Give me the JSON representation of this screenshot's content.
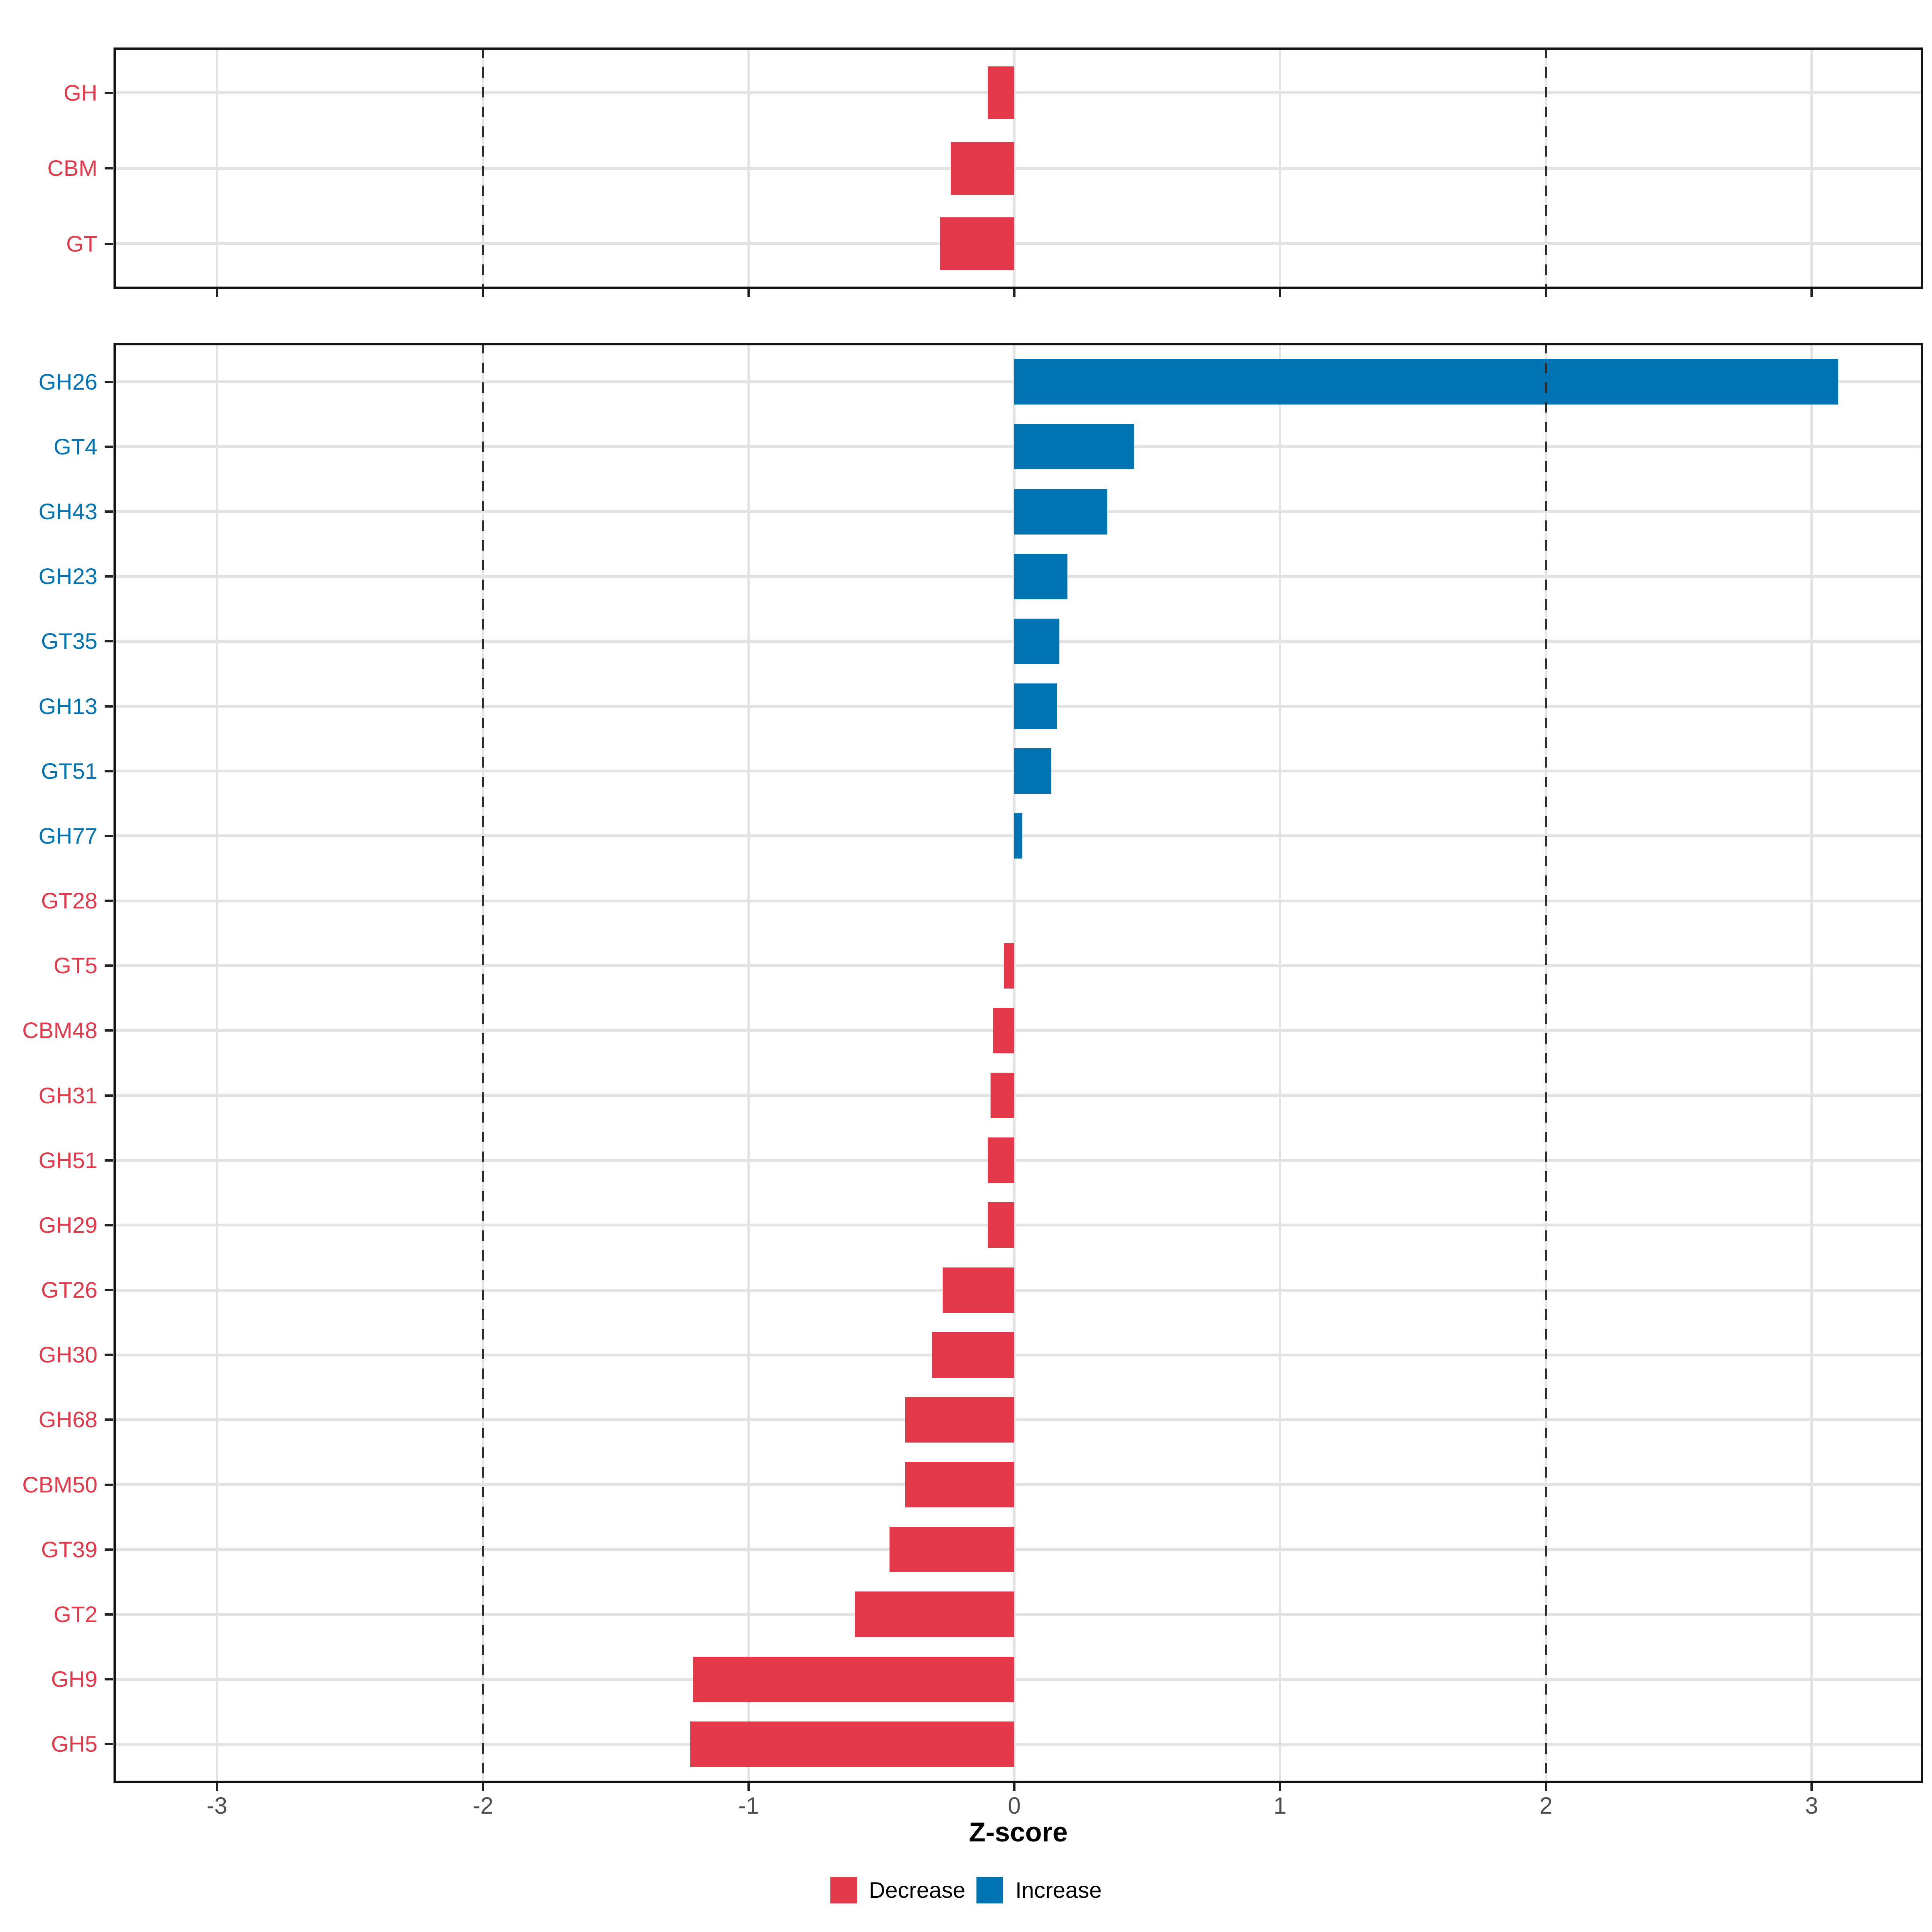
{
  "chart_data": {
    "type": "bar",
    "orientation": "horizontal",
    "title": "",
    "xlabel": "Z-score",
    "ylabel": "",
    "x_domain": [
      -3.39,
      3.42
    ],
    "x_ticks": [
      {
        "value": -3,
        "label": "-3"
      },
      {
        "value": -2,
        "label": "-2"
      },
      {
        "value": -1,
        "label": "-1"
      },
      {
        "value": 0,
        "label": "0"
      },
      {
        "value": 1,
        "label": "1"
      },
      {
        "value": 2,
        "label": "2"
      },
      {
        "value": 3,
        "label": "3"
      }
    ],
    "dashed_guides": [
      -2,
      2
    ],
    "grid": true,
    "legend_position": "bottom",
    "colors": {
      "decrease": "#E4394B",
      "increase": "#0074B3",
      "gridline": "#e3e3e3",
      "dashed_guide": "#2d2d2d",
      "panel_border": "#141414",
      "tick_label": "#4d4d4d"
    },
    "legend": [
      {
        "label": "Decrease",
        "key": "decrease"
      },
      {
        "label": "Increase",
        "key": "increase"
      }
    ],
    "panels": [
      {
        "name": "cazy-classes",
        "categories": [
          "GH",
          "CBM",
          "GT"
        ],
        "values": [
          -0.1,
          -0.24,
          -0.28
        ],
        "directions": [
          "decrease",
          "decrease",
          "decrease"
        ]
      },
      {
        "name": "cazy-families",
        "categories": [
          "GH26",
          "GT4",
          "GH43",
          "GH23",
          "GT35",
          "GH13",
          "GT51",
          "GH77",
          "GT28",
          "GT5",
          "CBM48",
          "GH31",
          "GH51",
          "GH29",
          "GT26",
          "GH30",
          "GH68",
          "CBM50",
          "GT39",
          "GT2",
          "GH9",
          "GH5"
        ],
        "values": [
          3.1,
          0.45,
          0.35,
          0.2,
          0.17,
          0.16,
          0.14,
          0.03,
          0,
          -0.04,
          -0.08,
          -0.09,
          -0.1,
          -0.1,
          -0.27,
          -0.31,
          -0.41,
          -0.41,
          -0.47,
          -0.6,
          -1.21,
          -1.22
        ],
        "directions": [
          "increase",
          "increase",
          "increase",
          "increase",
          "increase",
          "increase",
          "increase",
          "increase",
          "decrease",
          "decrease",
          "decrease",
          "decrease",
          "decrease",
          "decrease",
          "decrease",
          "decrease",
          "decrease",
          "decrease",
          "decrease",
          "decrease",
          "decrease",
          "decrease"
        ]
      }
    ]
  }
}
